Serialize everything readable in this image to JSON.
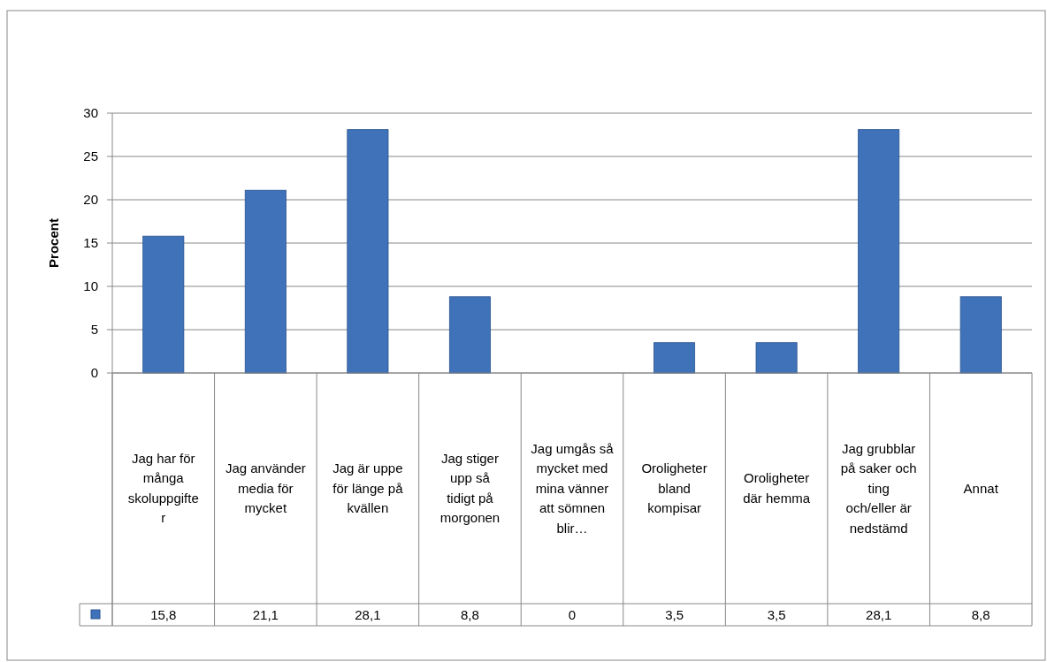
{
  "chart_data": {
    "type": "bar",
    "ylabel": "Procent",
    "categories": [
      "Jag har för många skoluppgifter",
      "Jag använder media för mycket",
      "Jag är uppe för länge på kvällen",
      "Jag stiger upp så tidigt på morgonen",
      "Jag umgås så mycket med mina vänner att sömnen blir…",
      "Oroligheter bland kompisar",
      "Oroligheter där hemma",
      "Jag grubblar på saker och ting och/eller är nedstämd",
      "Annat"
    ],
    "values": [
      15.8,
      21.1,
      28.1,
      8.8,
      0,
      3.5,
      3.5,
      28.1,
      8.8
    ],
    "value_labels": [
      "15,8",
      "21,1",
      "28,1",
      "8,8",
      "0",
      "3,5",
      "3,5",
      "28,1",
      "8,8"
    ],
    "color": "#3f72b8",
    "ylim": [
      0,
      30
    ],
    "yticks": [
      0,
      5,
      10,
      15,
      20,
      25,
      30
    ],
    "grid": "y"
  }
}
